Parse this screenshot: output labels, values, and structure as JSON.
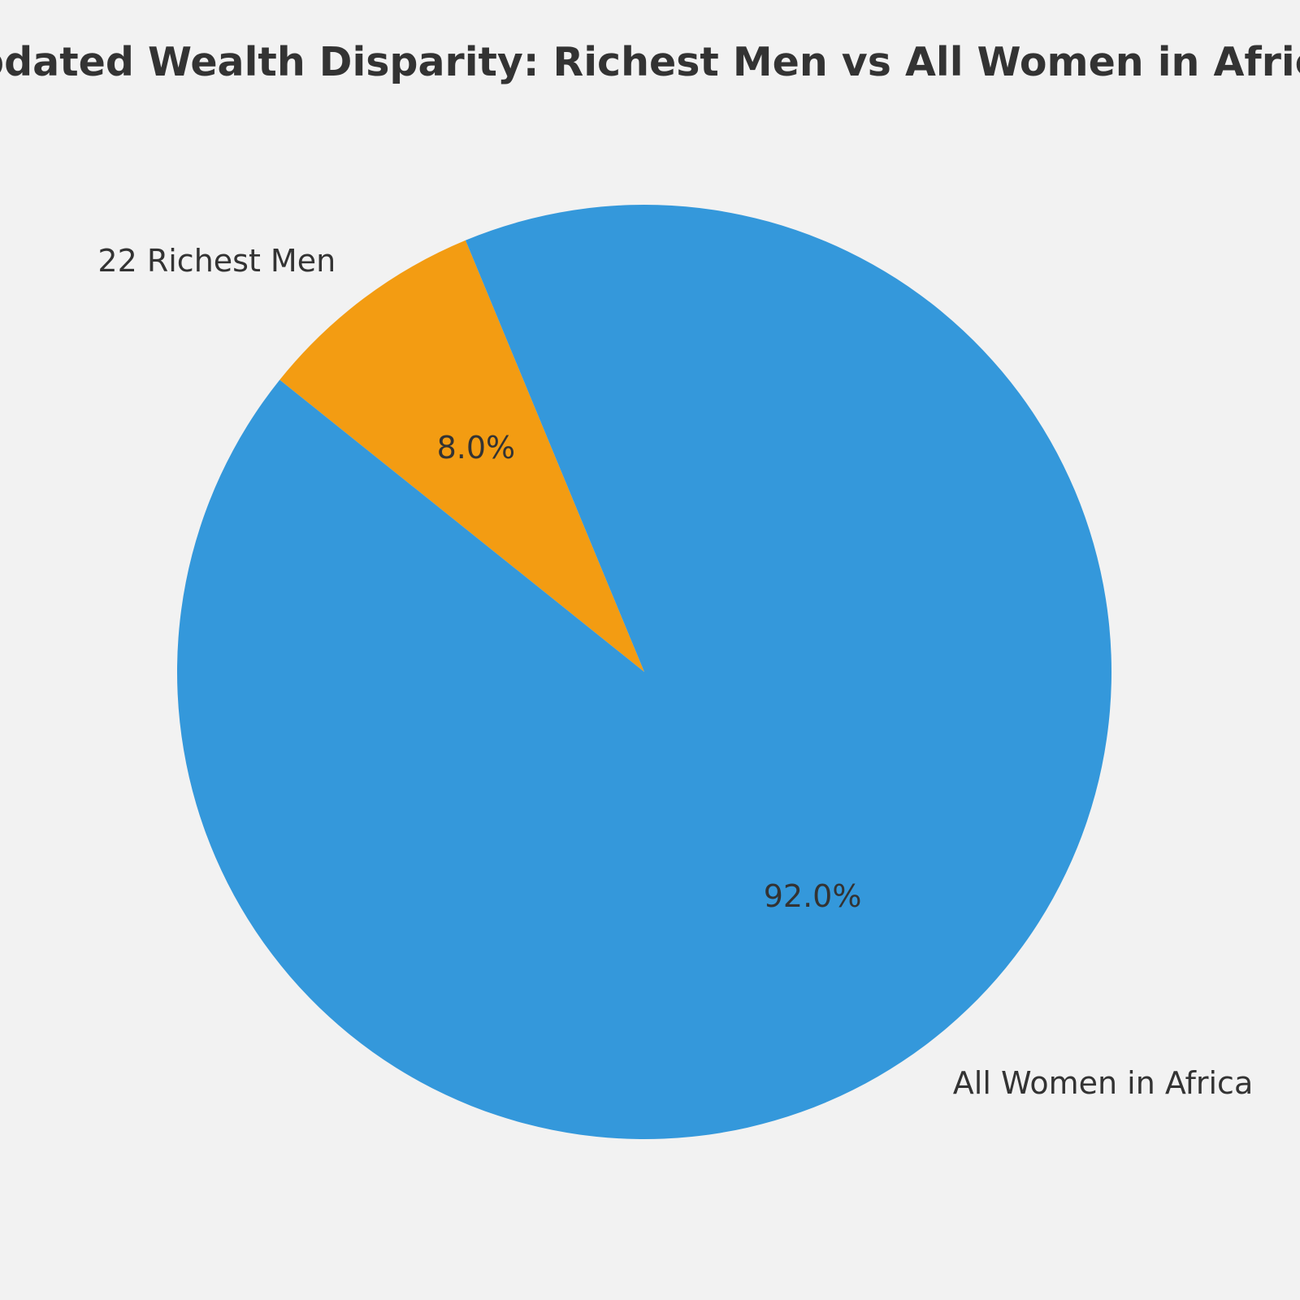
{
  "chart_data": {
    "type": "pie",
    "title": "Updated Wealth Disparity: Richest Men vs All Women in Africa",
    "slices": [
      {
        "label": "22 Richest Men",
        "value": 8.0,
        "pct_label": "8.0%",
        "color": "#f39c12"
      },
      {
        "label": "All Women in Africa",
        "value": 92.0,
        "pct_label": "92.0%",
        "color": "#3498db"
      }
    ],
    "background": "#f2f2f2",
    "text_color": "#333333"
  }
}
